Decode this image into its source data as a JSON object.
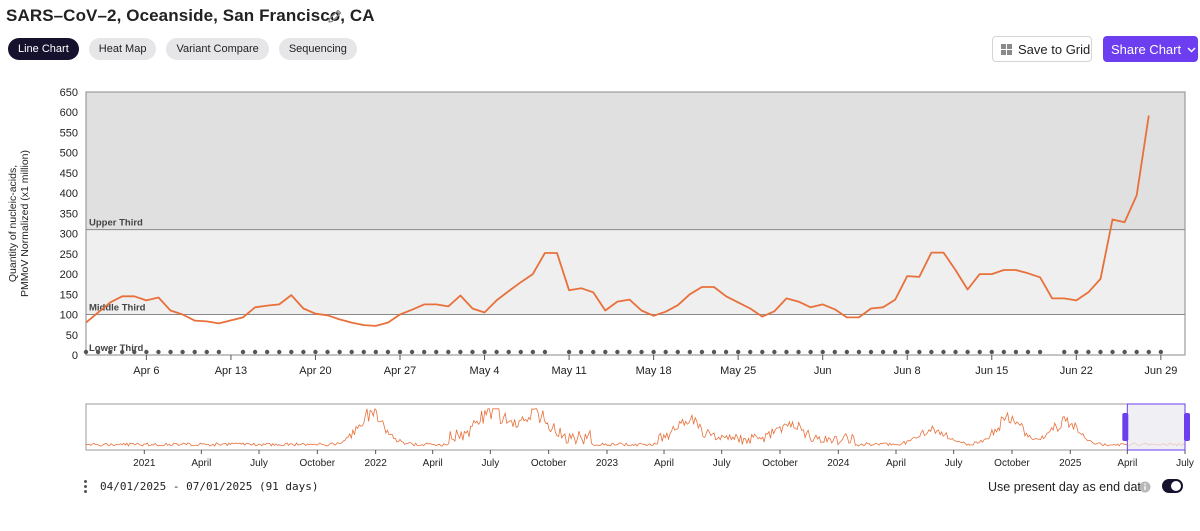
{
  "header": {
    "title": "SARS–CoV–2, Oceanside, San Francisco, CA"
  },
  "tabs": [
    {
      "label": "Line Chart",
      "active": true
    },
    {
      "label": "Heat Map",
      "active": false
    },
    {
      "label": "Variant Compare",
      "active": false
    },
    {
      "label": "Sequencing",
      "active": false
    }
  ],
  "toolbar": {
    "save_label": "Save to Grid",
    "share_label": "Share Chart"
  },
  "colors": {
    "accent": "#6c3ef0",
    "line": "#e8703a",
    "dark": "#16122e"
  },
  "chart_data": {
    "type": "line",
    "ylabel": [
      "Quantity of nucleic-acids,",
      "PMMoV Normalized (x1 million)"
    ],
    "ylim": [
      0,
      650
    ],
    "yticks": [
      0,
      50,
      100,
      150,
      200,
      250,
      300,
      350,
      400,
      450,
      500,
      550,
      600,
      650
    ],
    "xlim": [
      "2025-04-01",
      "2025-07-01"
    ],
    "xticks": [
      {
        "date": "2025-04-06",
        "label": "Apr 6"
      },
      {
        "date": "2025-04-13",
        "label": "Apr 13"
      },
      {
        "date": "2025-04-20",
        "label": "Apr 20"
      },
      {
        "date": "2025-04-27",
        "label": "Apr 27"
      },
      {
        "date": "2025-05-04",
        "label": "May 4"
      },
      {
        "date": "2025-05-11",
        "label": "May 11"
      },
      {
        "date": "2025-05-18",
        "label": "May 18"
      },
      {
        "date": "2025-05-25",
        "label": "May 25"
      },
      {
        "date": "2025-06-01",
        "label": "Jun"
      },
      {
        "date": "2025-06-08",
        "label": "Jun 8"
      },
      {
        "date": "2025-06-15",
        "label": "Jun 15"
      },
      {
        "date": "2025-06-22",
        "label": "Jun 22"
      },
      {
        "date": "2025-06-29",
        "label": "Jun 29"
      }
    ],
    "bands": [
      {
        "label": "Lower Third",
        "from": 0,
        "to": 100,
        "color": "#ffffff"
      },
      {
        "label": "Middle Third",
        "from": 100,
        "to": 310,
        "color": "#efefef"
      },
      {
        "label": "Upper Third",
        "from": 310,
        "to": 650,
        "color": "#e0e0e0"
      }
    ],
    "series": [
      {
        "x": [
          "2025-04-01",
          "2025-04-03",
          "2025-04-04",
          "2025-04-05",
          "2025-04-06",
          "2025-04-07",
          "2025-04-08",
          "2025-04-09",
          "2025-04-10",
          "2025-04-11",
          "2025-04-12",
          "2025-04-14",
          "2025-04-15",
          "2025-04-16",
          "2025-04-17",
          "2025-04-18",
          "2025-04-19",
          "2025-04-20",
          "2025-04-21",
          "2025-04-22",
          "2025-04-23",
          "2025-04-24",
          "2025-04-25",
          "2025-04-26",
          "2025-04-27",
          "2025-04-28",
          "2025-04-29",
          "2025-04-30",
          "2025-05-01",
          "2025-05-02",
          "2025-05-03",
          "2025-05-04",
          "2025-05-05",
          "2025-05-06",
          "2025-05-07",
          "2025-05-08",
          "2025-05-09",
          "2025-05-10",
          "2025-05-11",
          "2025-05-12",
          "2025-05-13",
          "2025-05-14",
          "2025-05-15",
          "2025-05-16",
          "2025-05-17",
          "2025-05-18",
          "2025-05-19",
          "2025-05-20",
          "2025-05-21",
          "2025-05-22",
          "2025-05-23",
          "2025-05-24",
          "2025-05-25",
          "2025-05-26",
          "2025-05-27",
          "2025-05-28",
          "2025-05-29",
          "2025-05-30",
          "2025-05-31",
          "2025-06-01",
          "2025-06-02",
          "2025-06-03",
          "2025-06-04",
          "2025-06-05",
          "2025-06-06",
          "2025-06-07",
          "2025-06-08",
          "2025-06-09",
          "2025-06-10",
          "2025-06-11",
          "2025-06-12",
          "2025-06-13",
          "2025-06-14",
          "2025-06-15",
          "2025-06-16",
          "2025-06-17",
          "2025-06-18",
          "2025-06-19",
          "2025-06-20",
          "2025-06-21",
          "2025-06-22",
          "2025-06-23",
          "2025-06-24",
          "2025-06-25",
          "2025-06-26",
          "2025-06-27",
          "2025-06-28",
          "2025-06-29"
        ],
        "y": [
          80,
          130,
          145,
          145,
          135,
          142,
          110,
          100,
          85,
          83,
          78,
          93,
          118,
          122,
          125,
          148,
          115,
          102,
          98,
          88,
          80,
          74,
          72,
          80,
          100,
          112,
          125,
          125,
          120,
          147,
          115,
          105,
          135,
          158,
          180,
          200,
          252,
          252,
          160,
          165,
          155,
          110,
          132,
          137,
          110,
          97,
          107,
          123,
          150,
          168,
          168,
          145,
          130,
          115,
          95,
          108,
          140,
          132,
          118,
          125,
          113,
          93,
          93,
          115,
          118,
          137,
          195,
          193,
          253,
          253,
          210,
          162,
          200,
          200,
          210,
          210,
          202,
          192,
          140,
          140,
          135,
          155,
          188,
          335,
          328,
          395,
          592,
          null
        ]
      }
    ],
    "sample_dates": [
      "2025-04-01",
      "2025-04-02",
      "2025-04-03",
      "2025-04-04",
      "2025-04-05",
      "2025-04-06",
      "2025-04-07",
      "2025-04-08",
      "2025-04-09",
      "2025-04-10",
      "2025-04-11",
      "2025-04-12",
      "2025-04-14",
      "2025-04-15",
      "2025-04-16",
      "2025-04-17",
      "2025-04-18",
      "2025-04-19",
      "2025-04-20",
      "2025-04-21",
      "2025-04-22",
      "2025-04-23",
      "2025-04-24",
      "2025-04-25",
      "2025-04-26",
      "2025-04-27",
      "2025-04-28",
      "2025-04-29",
      "2025-04-30",
      "2025-05-01",
      "2025-05-02",
      "2025-05-03",
      "2025-05-04",
      "2025-05-05",
      "2025-05-06",
      "2025-05-07",
      "2025-05-08",
      "2025-05-09",
      "2025-05-11",
      "2025-05-12",
      "2025-05-13",
      "2025-05-14",
      "2025-05-15",
      "2025-05-16",
      "2025-05-17",
      "2025-05-18",
      "2025-05-19",
      "2025-05-20",
      "2025-05-21",
      "2025-05-22",
      "2025-05-23",
      "2025-05-24",
      "2025-05-25",
      "2025-05-26",
      "2025-05-27",
      "2025-05-28",
      "2025-05-29",
      "2025-05-30",
      "2025-05-31",
      "2025-06-01",
      "2025-06-02",
      "2025-06-03",
      "2025-06-04",
      "2025-06-05",
      "2025-06-06",
      "2025-06-07",
      "2025-06-08",
      "2025-06-09",
      "2025-06-10",
      "2025-06-11",
      "2025-06-12",
      "2025-06-13",
      "2025-06-14",
      "2025-06-15",
      "2025-06-16",
      "2025-06-17",
      "2025-06-18",
      "2025-06-19",
      "2025-06-21",
      "2025-06-22",
      "2025-06-23",
      "2025-06-24",
      "2025-06-25",
      "2025-06-26",
      "2025-06-27",
      "2025-06-28",
      "2025-06-29"
    ]
  },
  "navigator": {
    "xlim": [
      "2020-10-01",
      "2025-07-01"
    ],
    "ticks": [
      {
        "date": "2021-01-01",
        "label": "2021"
      },
      {
        "date": "2021-04-01",
        "label": "April"
      },
      {
        "date": "2021-07-01",
        "label": "July"
      },
      {
        "date": "2021-10-01",
        "label": "October"
      },
      {
        "date": "2022-01-01",
        "label": "2022"
      },
      {
        "date": "2022-04-01",
        "label": "April"
      },
      {
        "date": "2022-07-01",
        "label": "July"
      },
      {
        "date": "2022-10-01",
        "label": "October"
      },
      {
        "date": "2023-01-01",
        "label": "2023"
      },
      {
        "date": "2023-04-01",
        "label": "April"
      },
      {
        "date": "2023-07-01",
        "label": "July"
      },
      {
        "date": "2023-10-01",
        "label": "October"
      },
      {
        "date": "2024-01-01",
        "label": "2024"
      },
      {
        "date": "2024-04-01",
        "label": "April"
      },
      {
        "date": "2024-07-01",
        "label": "July"
      },
      {
        "date": "2024-10-01",
        "label": "October"
      },
      {
        "date": "2025-01-01",
        "label": "2025"
      },
      {
        "date": "2025-04-01",
        "label": "April"
      },
      {
        "date": "2025-07-01",
        "label": "July"
      }
    ],
    "selection": [
      "2025-04-01",
      "2025-07-01"
    ]
  },
  "footer": {
    "range_text": "04/01/2025 - 07/01/2025 (91 days)",
    "present_day_label": "Use present day as end date",
    "present_day_on": true
  }
}
